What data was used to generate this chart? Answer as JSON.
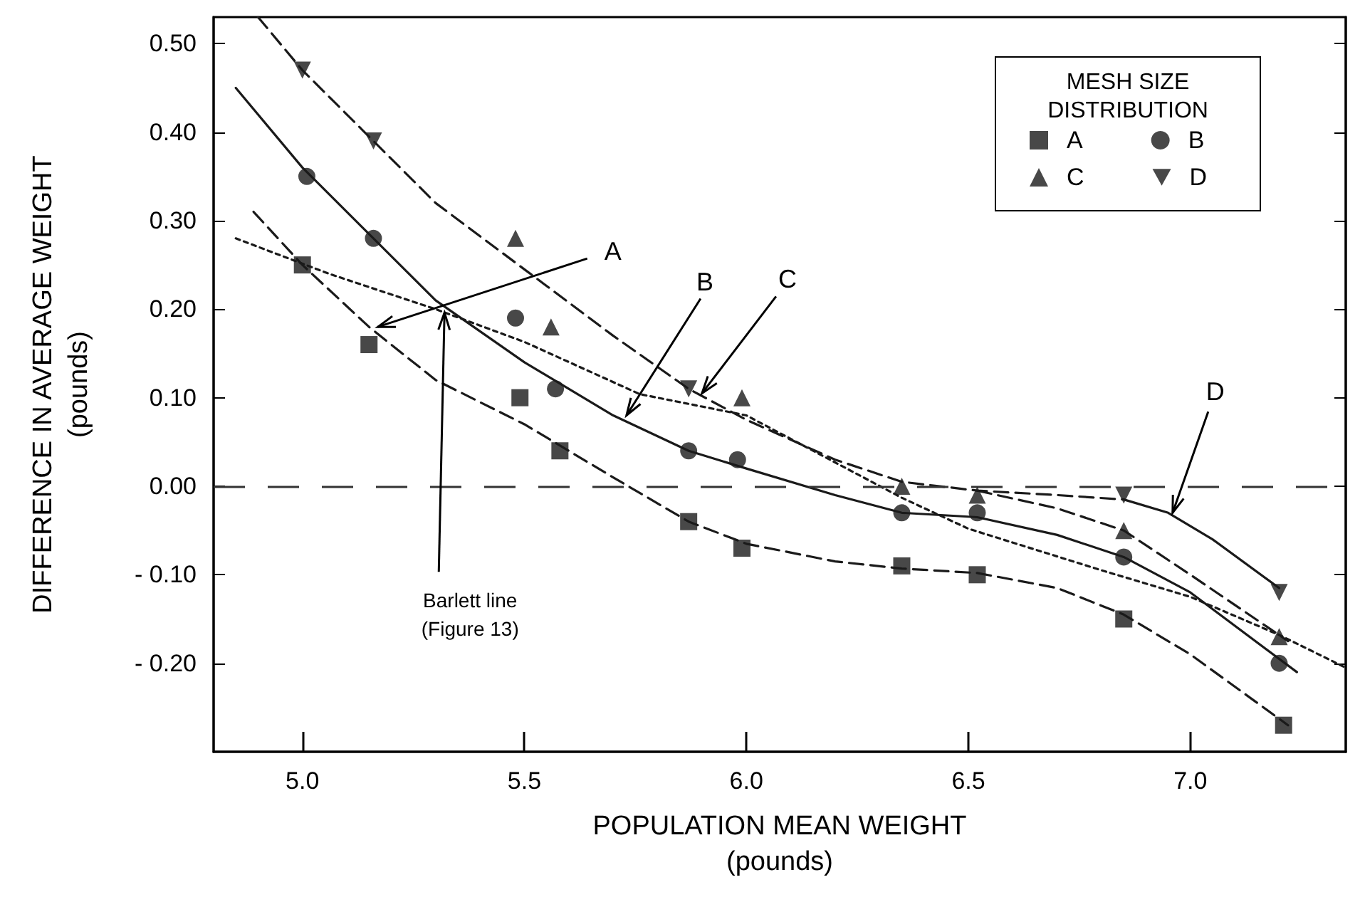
{
  "chart_data": {
    "type": "scatter",
    "xlabel": "POPULATION MEAN WEIGHT\n(pounds)",
    "ylabel": "DIFFERENCE IN AVERAGE WEIGHT\n(pounds)",
    "legend_title": "MESH SIZE DISTRIBUTION",
    "legend": "top right",
    "grid": false,
    "xlim": [
      4.8,
      7.35
    ],
    "xticks": [
      {
        "value": 5,
        "label": "5.0"
      },
      {
        "value": 5.5,
        "label": "5.5"
      },
      {
        "value": 6,
        "label": "6.0"
      },
      {
        "value": 6.5,
        "label": "6.5"
      },
      {
        "value": 7,
        "label": "7.0"
      }
    ],
    "ylim": [
      -0.3,
      0.53
    ],
    "yticks": [
      {
        "value": -0.2,
        "label": "- 0.20"
      },
      {
        "value": -0.1,
        "label": "- 0.10"
      },
      {
        "value": 0,
        "label": "0.00"
      },
      {
        "value": 0.1,
        "label": "0.10"
      },
      {
        "value": 0.2,
        "label": "0.20"
      },
      {
        "value": 0.3,
        "label": "0.30"
      },
      {
        "value": 0.4,
        "label": "0.40"
      },
      {
        "value": 0.5,
        "label": "0.50"
      }
    ],
    "ref_lines": [
      {
        "axis": "y",
        "value": 0,
        "line_style": "dashed",
        "color": "#333333"
      }
    ],
    "series": [
      {
        "name": "A",
        "type": "scatter",
        "marker": "square",
        "color": "#1a1a1a",
        "x": [
          5.0,
          5.15,
          5.49,
          5.58,
          5.87,
          5.99,
          6.35,
          6.52,
          6.85,
          7.21
        ],
        "values": [
          0.25,
          0.16,
          0.1,
          0.04,
          -0.04,
          -0.07,
          -0.09,
          -0.1,
          -0.15,
          -0.27
        ]
      },
      {
        "name": "B",
        "type": "scatter",
        "marker": "circle",
        "color": "#1a1a1a",
        "x": [
          5.01,
          5.16,
          5.48,
          5.57,
          5.87,
          5.98,
          6.35,
          6.52,
          6.85,
          7.2
        ],
        "values": [
          0.35,
          0.28,
          0.19,
          0.11,
          0.04,
          0.03,
          -0.03,
          -0.03,
          -0.08,
          -0.2
        ]
      },
      {
        "name": "C",
        "type": "scatter",
        "marker": "triangle",
        "color": "#1a1a1a",
        "x": [
          5.48,
          5.56,
          5.99,
          6.35,
          6.52,
          6.85,
          7.2
        ],
        "values": [
          0.28,
          0.18,
          0.1,
          0.0,
          -0.01,
          -0.05,
          -0.17
        ]
      },
      {
        "name": "D",
        "type": "scatter",
        "marker": "triangle-down",
        "color": "#1a1a1a",
        "x": [
          5.0,
          5.16,
          5.87,
          6.85,
          7.2
        ],
        "values": [
          0.47,
          0.39,
          0.11,
          -0.01,
          -0.12
        ]
      },
      {
        "type": "line",
        "marker": "none",
        "line_style": "dashed",
        "color": "#1a1a1a",
        "x": [
          4.89,
          5.0,
          5.15,
          5.3,
          5.5,
          5.7,
          5.87,
          6.0,
          6.2,
          6.35,
          6.52,
          6.7,
          6.85,
          7.0,
          7.22
        ],
        "values": [
          0.31,
          0.25,
          0.18,
          0.12,
          0.07,
          0.01,
          -0.04,
          -0.065,
          -0.085,
          -0.093,
          -0.098,
          -0.115,
          -0.145,
          -0.19,
          -0.27
        ]
      },
      {
        "type": "line",
        "marker": "none",
        "line_style": "solid",
        "color": "#1a1a1a",
        "x": [
          4.85,
          5.0,
          5.16,
          5.3,
          5.5,
          5.7,
          5.87,
          6.0,
          6.2,
          6.35,
          6.52,
          6.7,
          6.85,
          7.0,
          7.24
        ],
        "values": [
          0.45,
          0.36,
          0.28,
          0.21,
          0.14,
          0.08,
          0.04,
          0.02,
          -0.01,
          -0.03,
          -0.035,
          -0.055,
          -0.08,
          -0.12,
          -0.21
        ]
      },
      {
        "type": "line",
        "marker": "none",
        "line_style": "dashed",
        "color": "#1a1a1a",
        "x": [
          4.9,
          5.0,
          5.16,
          5.3,
          5.5,
          5.7,
          5.87,
          6.0,
          6.2,
          6.35,
          6.52,
          6.7,
          6.85
        ],
        "values": [
          0.53,
          0.47,
          0.39,
          0.32,
          0.245,
          0.17,
          0.11,
          0.075,
          0.03,
          0.005,
          -0.005,
          -0.01,
          -0.015
        ]
      },
      {
        "type": "line",
        "marker": "none",
        "line_style": "dashed",
        "color": "#1a1a1a",
        "x": [
          6.52,
          6.7,
          6.85,
          7.0,
          7.22
        ],
        "values": [
          -0.005,
          -0.025,
          -0.05,
          -0.1,
          -0.175
        ]
      },
      {
        "type": "line",
        "marker": "none",
        "line_style": "solid",
        "color": "#1a1a1a",
        "x": [
          6.85,
          6.95,
          7.05,
          7.2
        ],
        "values": [
          -0.015,
          -0.03,
          -0.06,
          -0.115
        ]
      },
      {
        "type": "line",
        "marker": "none",
        "line_style": "dotted",
        "color": "#1a1a1a",
        "x": [
          4.85,
          5.06,
          5.3,
          5.5,
          5.76,
          6.0,
          6.35,
          6.5,
          6.8,
          7.0,
          7.2,
          7.35
        ],
        "values": [
          0.28,
          0.24,
          0.2,
          0.163,
          0.104,
          0.08,
          -0.013,
          -0.048,
          -0.095,
          -0.125,
          -0.168,
          -0.205
        ]
      }
    ],
    "annotations": [
      {
        "text": "A",
        "x": 5.17,
        "y": 0.18
      },
      {
        "text": "B",
        "x": 5.73,
        "y": 0.08
      },
      {
        "text": "C",
        "x": 5.9,
        "y": 0.105
      },
      {
        "text": "D",
        "x": 6.96,
        "y": -0.03
      },
      {
        "text": "Barlett line\n(Figure 13)",
        "x": 5.32,
        "y": 0.196
      }
    ]
  }
}
